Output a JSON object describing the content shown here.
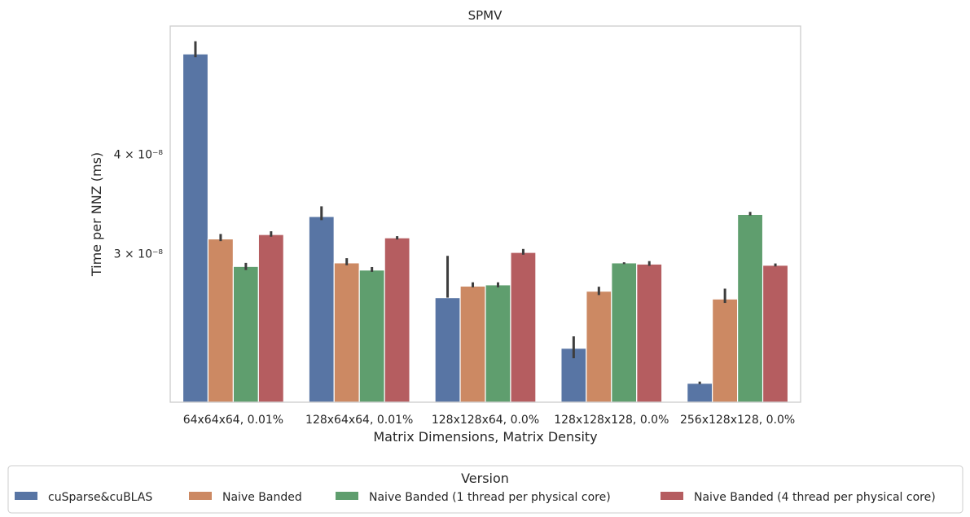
{
  "chart_data": {
    "type": "bar",
    "title": "SPMV",
    "xlabel": "Matrix Dimensions, Matrix Density",
    "ylabel": "Time per NNZ (ms)",
    "yscale": "log",
    "ylim": [
      1.95e-08,
      5.8e-08
    ],
    "yticks": [
      {
        "value": 4e-08,
        "label": "4 × 10⁻⁸"
      },
      {
        "value": 3e-08,
        "label": "3 × 10⁻⁸"
      }
    ],
    "grid": false,
    "categories": [
      "64x64x64, 0.01%",
      "128x64x64, 0.01%",
      "128x128x64, 0.0%",
      "128x128x128, 0.0%",
      "256x128x128, 0.0%"
    ],
    "series": [
      {
        "name": "cuSparse&cuBLAS",
        "color": "#5875a4",
        "values": [
          5.35e-08,
          3.34e-08,
          2.64e-08,
          2.28e-08,
          2.06e-08
        ],
        "err_low": [
          5.3e-08,
          3.305e-08,
          2.64e-08,
          2.215e-08,
          2.055e-08
        ],
        "err_high": [
          5.55e-08,
          3.44e-08,
          2.98e-08,
          2.36e-08,
          2.07e-08
        ]
      },
      {
        "name": "Naive Banded",
        "color": "#cc8963",
        "values": [
          3.13e-08,
          2.92e-08,
          2.73e-08,
          2.69e-08,
          2.63e-08
        ],
        "err_low": [
          3.11e-08,
          2.9e-08,
          2.72e-08,
          2.66e-08,
          2.6e-08
        ],
        "err_high": [
          3.175e-08,
          2.96e-08,
          2.76e-08,
          2.725e-08,
          2.71e-08
        ]
      },
      {
        "name": "Naive Banded (1 thread per physical core)",
        "color": "#5f9e6e",
        "values": [
          2.89e-08,
          2.86e-08,
          2.74e-08,
          2.92e-08,
          3.36e-08
        ],
        "err_low": [
          2.86e-08,
          2.845e-08,
          2.72e-08,
          2.91e-08,
          3.35e-08
        ],
        "err_high": [
          2.92e-08,
          2.885e-08,
          2.76e-08,
          2.925e-08,
          3.385e-08
        ]
      },
      {
        "name": "Naive Banded (4 thread per physical core)",
        "color": "#b55d60",
        "values": [
          3.17e-08,
          3.14e-08,
          3.01e-08,
          2.91e-08,
          2.9e-08
        ],
        "err_low": [
          3.15e-08,
          3.125e-08,
          2.99e-08,
          2.895e-08,
          2.89e-08
        ],
        "err_high": [
          3.2e-08,
          3.155e-08,
          3.04e-08,
          2.935e-08,
          2.915e-08
        ]
      }
    ],
    "legend": {
      "title": "Version",
      "placement": "bottom"
    }
  }
}
